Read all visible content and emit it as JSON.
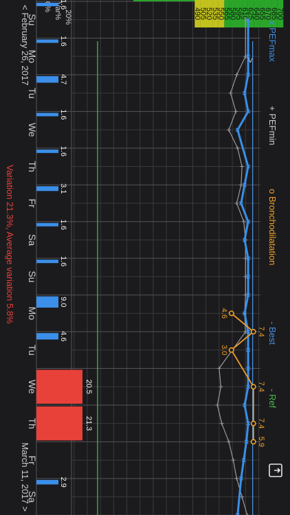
{
  "colors": {
    "background": "#1b1b1d",
    "grid": "#3a3a3e",
    "grid_major": "#55555a",
    "pefmax": "#3b8fe8",
    "pefmin": "#9a9a9e",
    "bronchodilatation": "#f0a028",
    "best": "#4a8fe0",
    "ref": "#4cb84c",
    "zone_green": "#2aa52a",
    "zone_yellow": "#c2c21e",
    "bar_normal": "#3b8fe8",
    "bar_high": "#e8413a",
    "alert_text": "#e8413a",
    "text": "#cfcfd2"
  },
  "legend": {
    "pefmax": "x PEFmax",
    "pefmin": "+ PEFmin",
    "bronchodilatation": "o Bronchodilatation",
    "best": "- Best",
    "ref": "- Ref"
  },
  "collapse_label": ">",
  "share_icon": "export-icon",
  "footer": {
    "start_date": "< February 26, 2017",
    "end_date": "March 11, 2017 >",
    "summary": "Variation 21.3%, Average variation 5.8%"
  },
  "chart_data": {
    "type": "line",
    "days": [
      "Su",
      "Mo",
      "Tu",
      "We",
      "Th",
      "Fr",
      "Sa",
      "Su",
      "Mo",
      "Tu",
      "We",
      "Th",
      "Fr",
      "Sa"
    ],
    "pef_axis": {
      "ticks": [
        700,
        685,
        670,
        655,
        640,
        625,
        610,
        595,
        580,
        565,
        550,
        535,
        520,
        505,
        490
      ],
      "range": [
        487,
        702
      ],
      "green_zone_min": 565
    },
    "series": [
      {
        "name": "PEFmax",
        "points": [
          {
            "day": 0.5,
            "value": 688
          },
          {
            "day": 1.5,
            "value": 688
          },
          {
            "day": 2.0,
            "value": 688
          },
          {
            "day": 2.5,
            "value": 684
          },
          {
            "day": 3.0,
            "value": 688
          },
          {
            "day": 3.5,
            "value": 676
          },
          {
            "day": 4.5,
            "value": 688
          },
          {
            "day": 5.0,
            "value": 684
          },
          {
            "day": 5.5,
            "value": 680
          },
          {
            "day": 6.0,
            "value": 688
          },
          {
            "day": 6.5,
            "value": 684
          },
          {
            "day": 7.0,
            "value": 688
          },
          {
            "day": 7.5,
            "value": 688
          },
          {
            "day": 8.0,
            "value": 688
          },
          {
            "day": 8.5,
            "value": 684
          },
          {
            "day": 9.0,
            "value": 688
          },
          {
            "day": 9.5,
            "value": 688
          },
          {
            "day": 10.0,
            "value": 688
          },
          {
            "day": 10.5,
            "value": 688
          },
          {
            "day": 11.0,
            "value": 684
          },
          {
            "day": 11.5,
            "value": 688
          },
          {
            "day": 12.0,
            "value": 686
          },
          {
            "day": 12.5,
            "value": 683
          },
          {
            "day": 13.0,
            "value": 680
          },
          {
            "day": 14.0,
            "value": 676
          }
        ]
      },
      {
        "name": "PEFmin",
        "points": [
          {
            "day": 0.5,
            "value": 685
          },
          {
            "day": 1.5,
            "value": 685
          },
          {
            "day": 2.0,
            "value": 675
          },
          {
            "day": 2.5,
            "value": 668
          },
          {
            "day": 3.0,
            "value": 674
          },
          {
            "day": 3.5,
            "value": 666
          },
          {
            "day": 4.0,
            "value": 676
          },
          {
            "day": 4.5,
            "value": 681
          },
          {
            "day": 5.0,
            "value": 680
          },
          {
            "day": 5.5,
            "value": 675
          },
          {
            "day": 6.0,
            "value": 683
          },
          {
            "day": 6.5,
            "value": 685
          },
          {
            "day": 7.0,
            "value": 685
          },
          {
            "day": 7.5,
            "value": 685
          },
          {
            "day": 8.0,
            "value": 685
          },
          {
            "day": 8.5,
            "value": 684
          },
          {
            "day": 9.0,
            "value": 685
          },
          {
            "day": 10.0,
            "value": 655
          },
          {
            "day": 10.5,
            "value": 657
          },
          {
            "day": 11.0,
            "value": 653
          },
          {
            "day": 11.5,
            "value": 658
          },
          {
            "day": 12.0,
            "value": 666
          },
          {
            "day": 12.5,
            "value": 671
          },
          {
            "day": 13.0,
            "value": 675
          },
          {
            "day": 13.5,
            "value": 681
          },
          {
            "day": 14.0,
            "value": 687
          }
        ]
      },
      {
        "name": "Bronchodilatation",
        "points": [
          {
            "day": 8.5,
            "value": 669,
            "label": "4.6"
          },
          {
            "day": 9.0,
            "value": 694,
            "label": "7.4"
          },
          {
            "day": 9.5,
            "value": 669,
            "label": "3.0"
          },
          {
            "day": 10.5,
            "value": 694,
            "label": "7.4"
          },
          {
            "day": 11.5,
            "value": 694,
            "label": "7.4"
          },
          {
            "day": 12.0,
            "value": 694,
            "label": "5.9"
          }
        ]
      }
    ],
    "best": 690,
    "variation": {
      "label": "Var%",
      "ticks": [
        "20%",
        "0%"
      ],
      "ref": 20,
      "values": [
        1.6,
        1.6,
        4.7,
        1.6,
        1.6,
        3.1,
        1.6,
        1.6,
        9.0,
        4.6,
        20.5,
        21.3,
        null,
        2.9
      ],
      "labels": [
        "1.6",
        "1.6",
        "4.7",
        "1.6",
        "1.6",
        "3.1",
        "1.6",
        "1.6",
        "9.0",
        "4.6",
        "20.5",
        "21.3",
        "",
        "2.9"
      ],
      "high_threshold": 20
    }
  }
}
